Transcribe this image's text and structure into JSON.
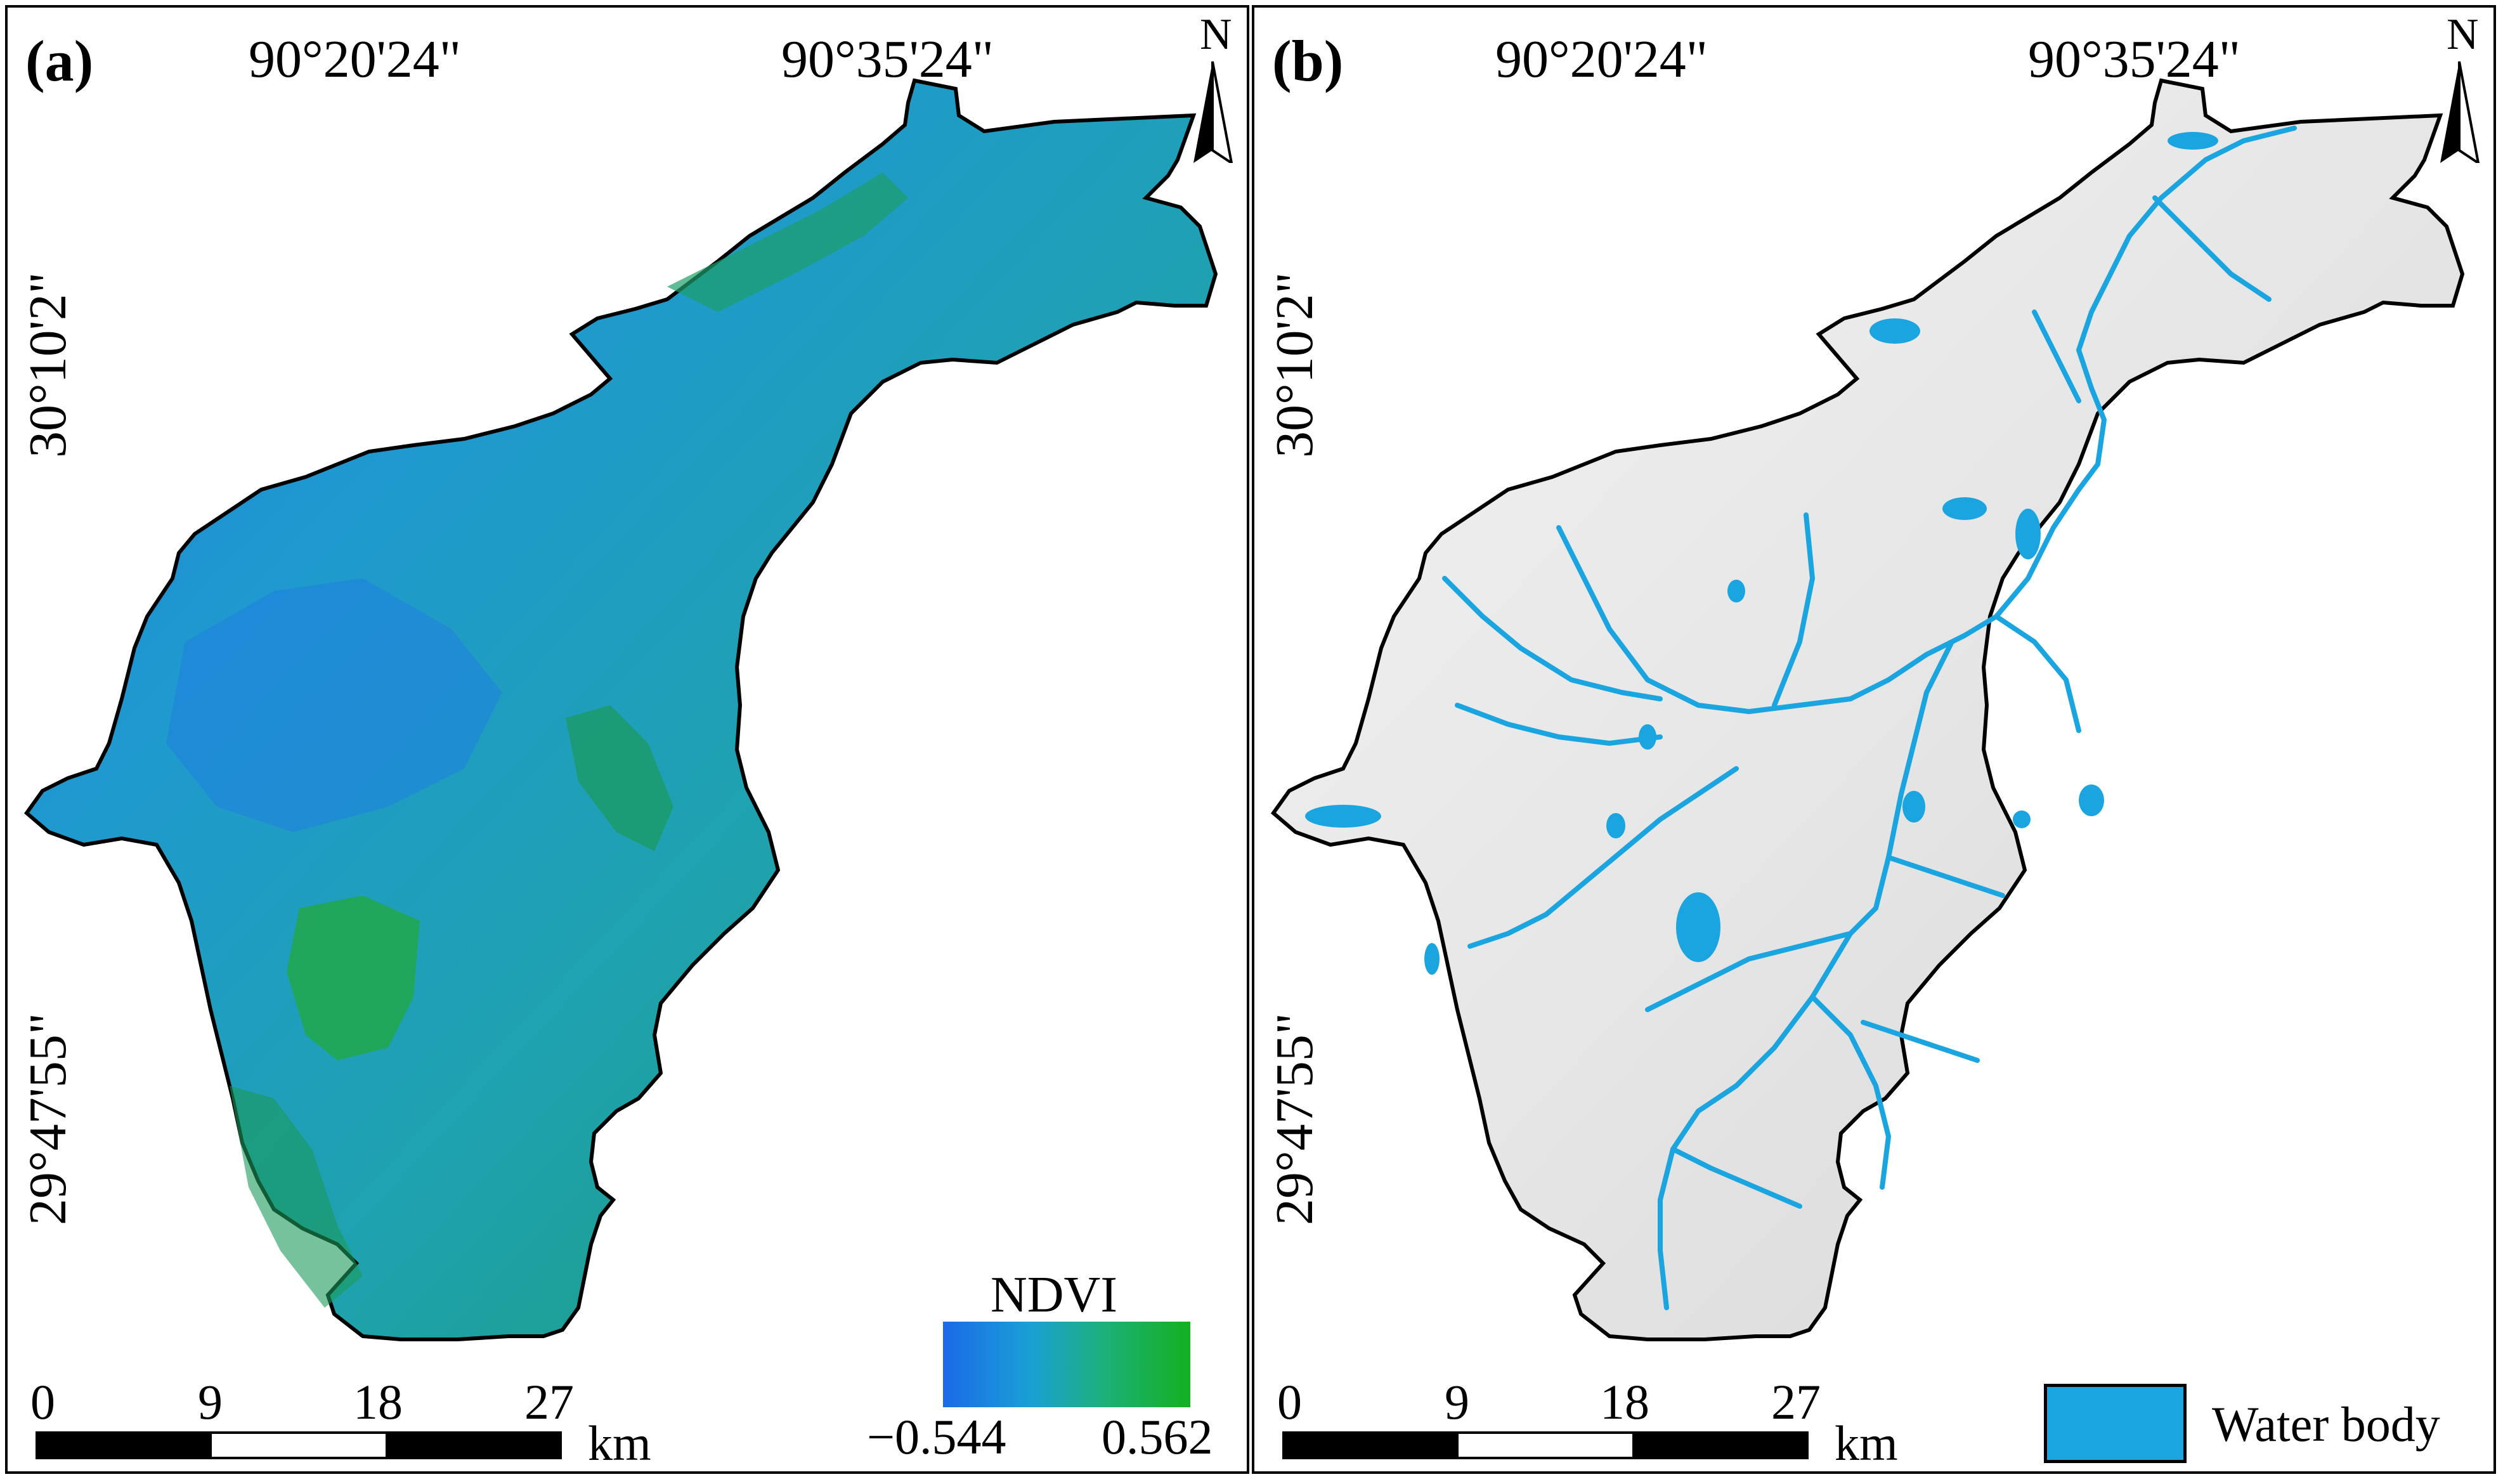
{
  "panels": [
    {
      "label": "(a)",
      "lon_labels": [
        "90°20'24\"",
        "90°35'24\""
      ],
      "lat_labels": [
        "30°10'2\"",
        "29°47'55\""
      ],
      "north": "N",
      "scale": {
        "ticks": [
          "0",
          "9",
          "18",
          "27"
        ],
        "unit": "km"
      },
      "legend": {
        "title": "NDVI",
        "min": "−0.544",
        "max": "0.562",
        "colors": [
          "#1a6ae8",
          "#1a9fd6",
          "#1cb07a",
          "#14b020"
        ]
      }
    },
    {
      "label": "(b)",
      "lon_labels": [
        "90°20'24\"",
        "90°35'24\""
      ],
      "lat_labels": [
        "30°10'2\"",
        "29°47'55\""
      ],
      "north": "N",
      "scale": {
        "ticks": [
          "0",
          "9",
          "18",
          "27"
        ],
        "unit": "km"
      },
      "legend": {
        "label": "Water body",
        "color": "#1ba5e0"
      }
    }
  ],
  "colors": {
    "water": "#1ba5e0",
    "ndvi_base": "#1f9fbf",
    "hillshade": "#e4e4e4"
  }
}
